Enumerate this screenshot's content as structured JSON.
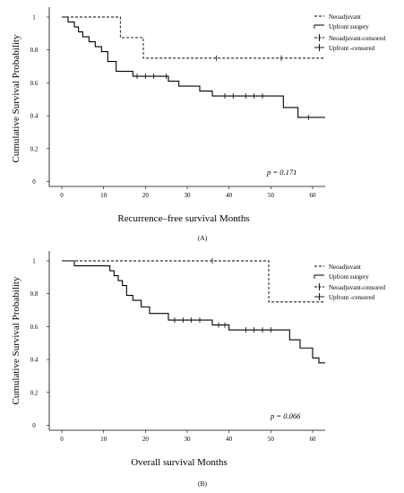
{
  "chart_data": [
    {
      "type": "line",
      "subtype": "kaplan-meier step",
      "panel_label": "(A)",
      "xlabel": "Recurrence–free survival Months",
      "ylabel": "Cumulative Survival Probability",
      "xlim": [
        -3,
        63
      ],
      "ylim": [
        -0.03,
        1.06
      ],
      "xticks": [
        0,
        10,
        20,
        30,
        40,
        50,
        60
      ],
      "yticks": [
        0,
        0.2,
        0.4,
        0.6,
        0.8,
        1
      ],
      "ytick_labels": [
        "0",
        "0.2",
        "0.4",
        "0.6",
        "0.8",
        "1"
      ],
      "annotation": "p = 0.171",
      "grid": false,
      "legend_position": "top-right",
      "legend": [
        "Neoadjuvant",
        "Upfront surgery",
        "Neoadjuvant-censored",
        "Upfront -censored"
      ],
      "series": [
        {
          "name": "Neoadjuvant",
          "line_style": "dashed",
          "x": [
            0,
            14,
            19.5,
            63
          ],
          "y": [
            1.0,
            0.875,
            0.75,
            0.75
          ],
          "censored_x": [
            37,
            52.5
          ]
        },
        {
          "name": "Upfront surgery",
          "line_style": "solid",
          "x": [
            0,
            1.5,
            3,
            4,
            5,
            6.5,
            8,
            9.5,
            11,
            13,
            17,
            25.5,
            28,
            33,
            36,
            53,
            56.5,
            63
          ],
          "y": [
            1.0,
            0.97,
            0.94,
            0.91,
            0.88,
            0.85,
            0.82,
            0.79,
            0.73,
            0.67,
            0.64,
            0.61,
            0.58,
            0.55,
            0.52,
            0.45,
            0.39,
            0.39
          ],
          "censored_x": [
            18,
            20,
            22,
            25,
            39,
            41,
            44,
            46,
            48,
            59
          ]
        }
      ]
    },
    {
      "type": "line",
      "subtype": "kaplan-meier step",
      "panel_label": "(B)",
      "xlabel": "Overall survival Months",
      "ylabel": "Cumulative Survival Probability",
      "xlim": [
        -3,
        63
      ],
      "ylim": [
        -0.03,
        1.06
      ],
      "xticks": [
        0,
        10,
        20,
        30,
        40,
        50,
        60
      ],
      "yticks": [
        0,
        0.2,
        0.4,
        0.6,
        0.8,
        1
      ],
      "ytick_labels": [
        "0",
        "0.2",
        "0.4",
        "0.6",
        "0.8",
        "1"
      ],
      "annotation": "p = 0.066",
      "grid": false,
      "legend_position": "top-right",
      "legend": [
        "Neoadjuvant",
        "Upfront surgery",
        "Neoadjuvant-censored",
        "Upfront -censored"
      ],
      "series": [
        {
          "name": "Neoadjuvant",
          "line_style": "dashed",
          "x": [
            0,
            49.5,
            63
          ],
          "y": [
            1.0,
            0.75,
            0.75
          ],
          "censored_x": [
            36
          ]
        },
        {
          "name": "Upfront surgery",
          "line_style": "solid",
          "x": [
            0,
            3,
            11.5,
            12.5,
            13.5,
            14.5,
            15.5,
            17,
            19,
            21,
            25.5,
            36,
            40,
            54.5,
            57,
            60,
            61.5,
            63
          ],
          "y": [
            1.0,
            0.97,
            0.94,
            0.91,
            0.88,
            0.85,
            0.79,
            0.76,
            0.72,
            0.68,
            0.64,
            0.61,
            0.58,
            0.52,
            0.47,
            0.41,
            0.38,
            0.38
          ],
          "censored_x": [
            27,
            29,
            31,
            33,
            37.5,
            39,
            44,
            46,
            48,
            50
          ]
        }
      ]
    }
  ]
}
